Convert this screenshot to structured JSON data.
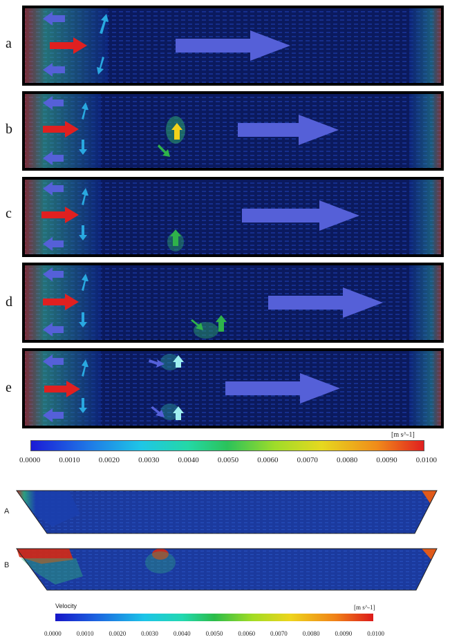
{
  "panel_labels": [
    "a",
    "b",
    "c",
    "d",
    "e"
  ],
  "colorbar_top": {
    "unit": "[m s^-1]",
    "ticks": [
      "0.0000",
      "0.0010",
      "0.0020",
      "0.0030",
      "0.0040",
      "0.0050",
      "0.0060",
      "0.0070",
      "0.0080",
      "0.0090",
      "0.0100"
    ]
  },
  "trap_labels": [
    "A",
    "B"
  ],
  "colorbar_bottom": {
    "title": "Velocity",
    "unit": "[m s^-1]",
    "ticks": [
      "0.0000",
      "0.0010",
      "0.0020",
      "0.0030",
      "0.0040",
      "0.0050",
      "0.0060",
      "0.0070",
      "0.0080",
      "0.0090",
      "0.0100"
    ]
  },
  "colors": {
    "field_dark": "#0b1a5e",
    "flow_arrow": "#5560d8",
    "inflow_arrow": "#e02020",
    "green_arrow": "#2fb24a",
    "yellow_arrow": "#f2d21a",
    "cyan_arrow": "#29a8e0"
  }
}
